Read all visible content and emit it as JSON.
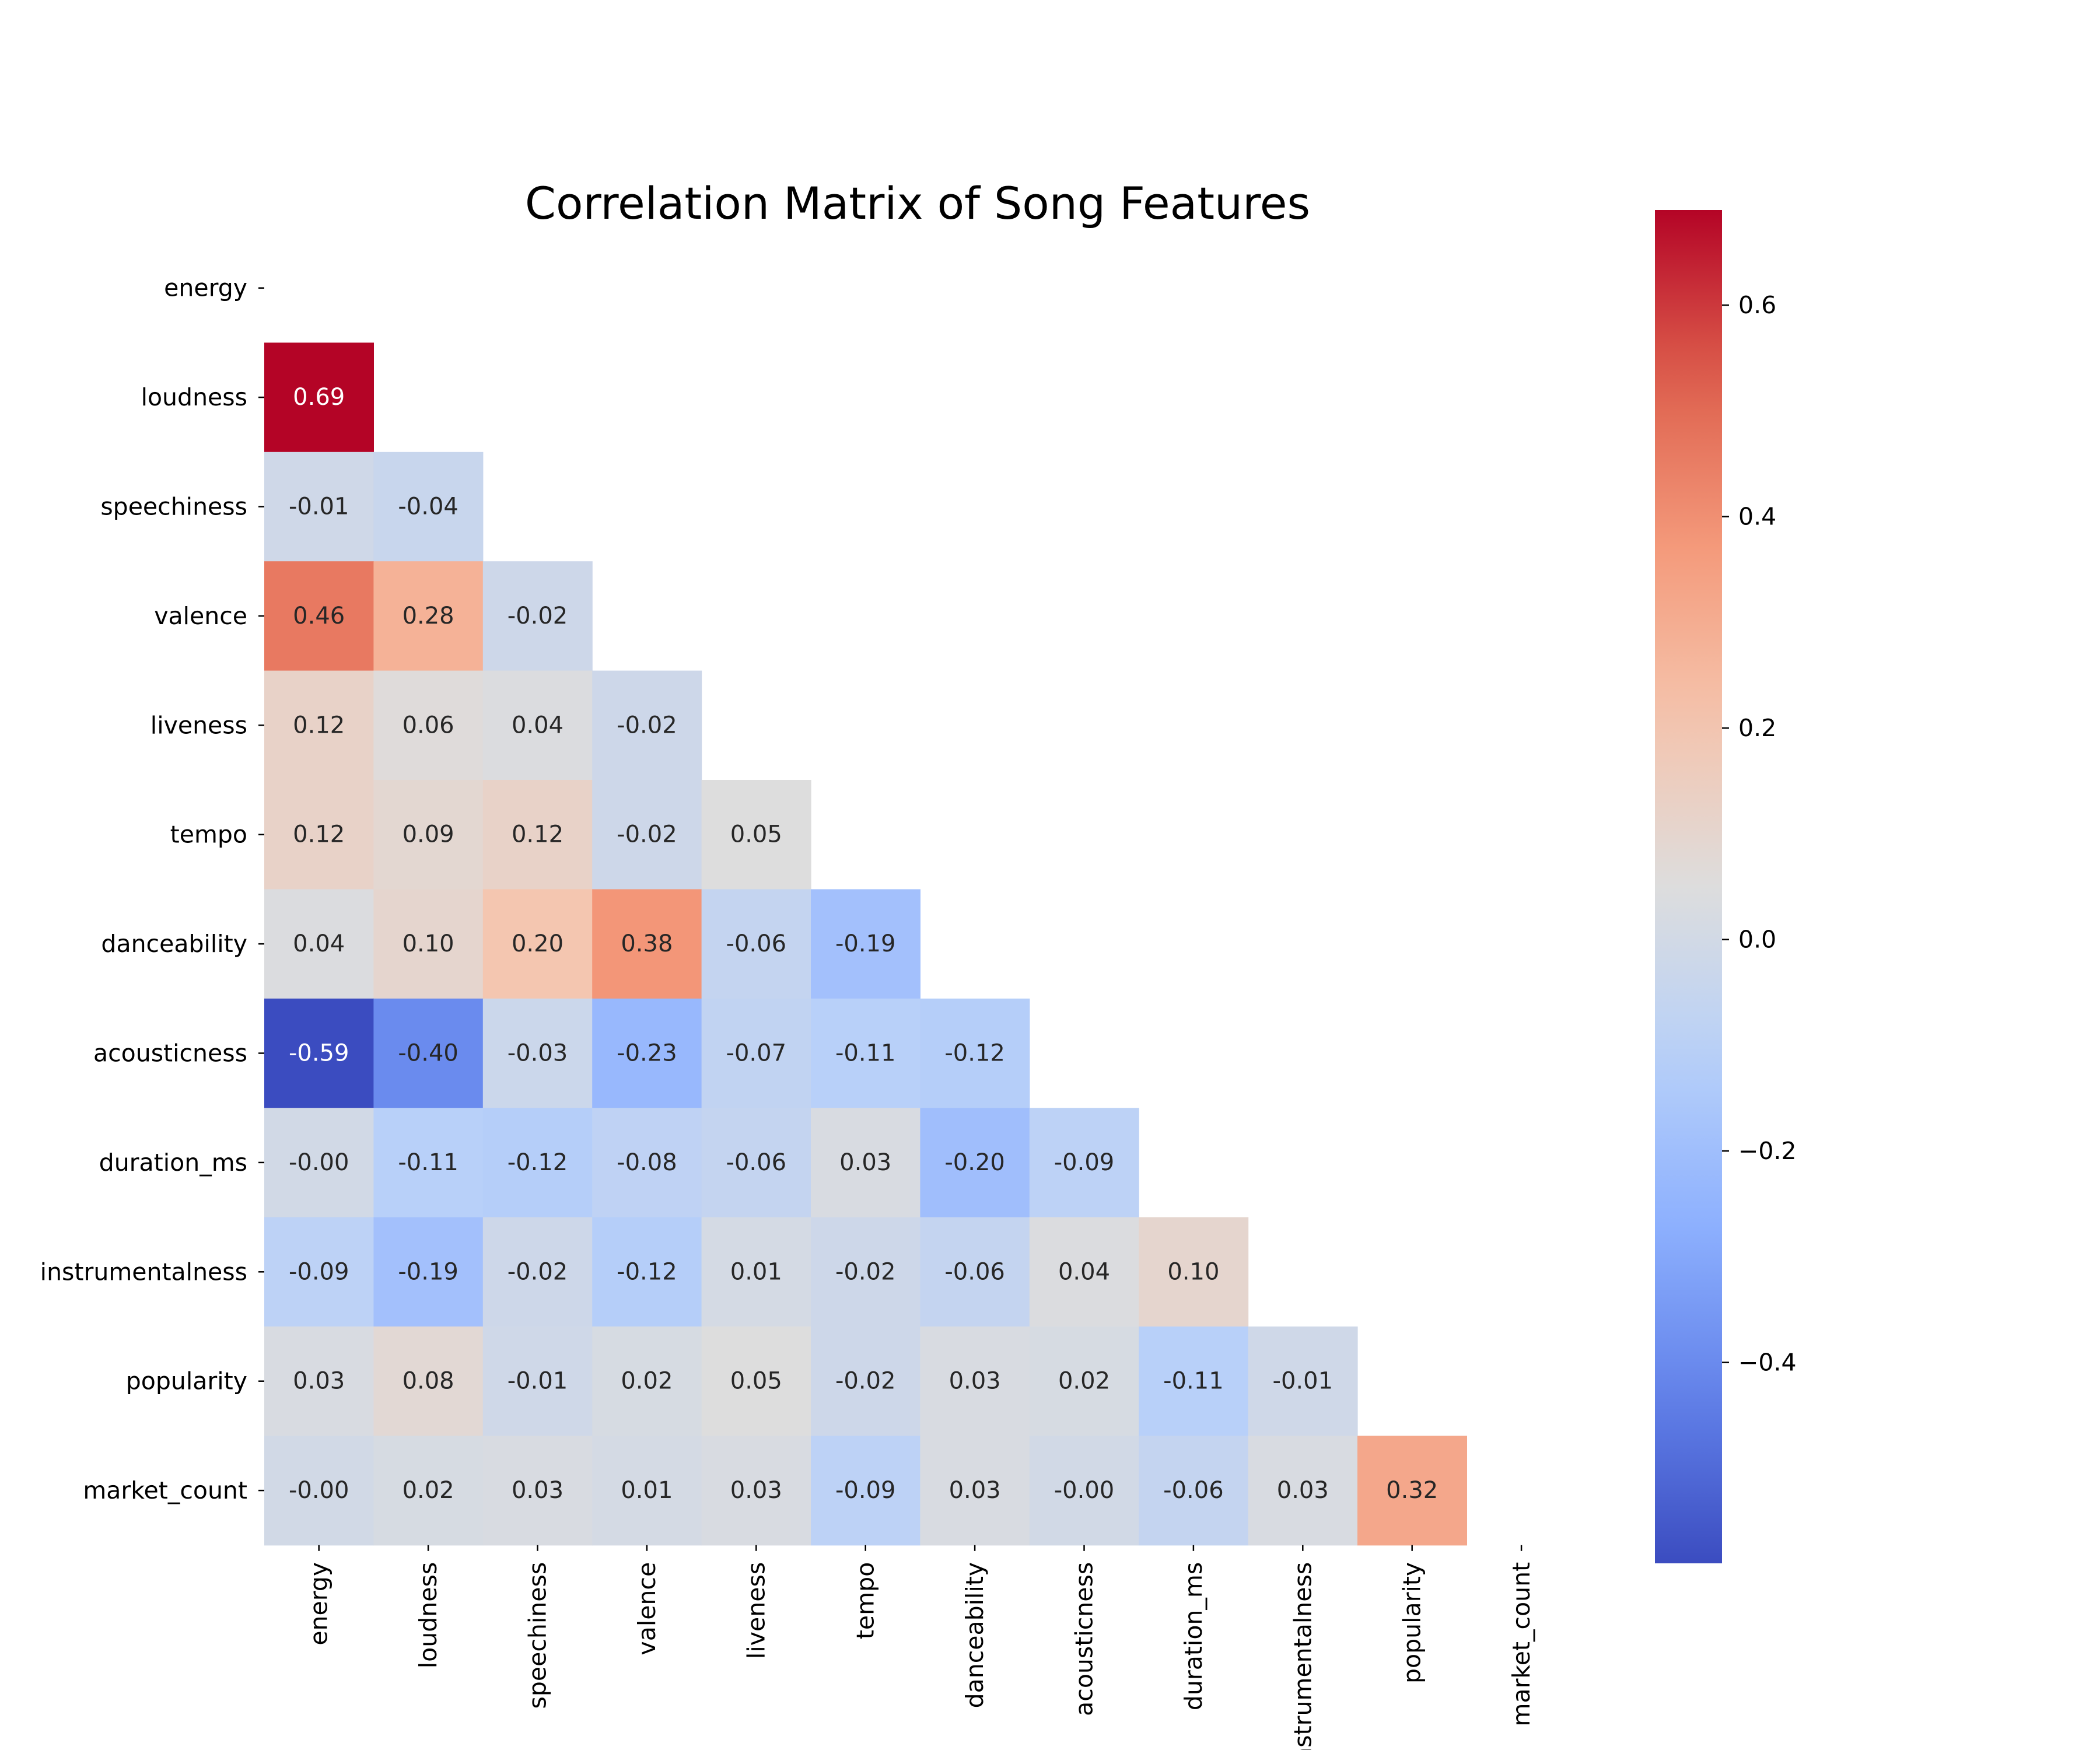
{
  "chart_data": {
    "type": "heatmap",
    "title": "Correlation Matrix of Song Features",
    "rows": [
      "energy",
      "loudness",
      "speechiness",
      "valence",
      "liveness",
      "tempo",
      "danceability",
      "acousticness",
      "duration_ms",
      "instrumentalness",
      "popularity",
      "market_count"
    ],
    "columns": [
      "energy",
      "loudness",
      "speechiness",
      "valence",
      "liveness",
      "tempo",
      "danceability",
      "acousticness",
      "duration_ms",
      "instrumentalness",
      "popularity",
      "market_count"
    ],
    "mask": "upper triangle including diagonal",
    "cells": [
      {
        "row": "loudness",
        "col": "energy",
        "label": "0.69",
        "value": 0.69
      },
      {
        "row": "speechiness",
        "col": "energy",
        "label": "-0.01",
        "value": -0.01
      },
      {
        "row": "speechiness",
        "col": "loudness",
        "label": "-0.04",
        "value": -0.04
      },
      {
        "row": "valence",
        "col": "energy",
        "label": "0.46",
        "value": 0.46
      },
      {
        "row": "valence",
        "col": "loudness",
        "label": "0.28",
        "value": 0.28
      },
      {
        "row": "valence",
        "col": "speechiness",
        "label": "-0.02",
        "value": -0.02
      },
      {
        "row": "liveness",
        "col": "energy",
        "label": "0.12",
        "value": 0.12
      },
      {
        "row": "liveness",
        "col": "loudness",
        "label": "0.06",
        "value": 0.06
      },
      {
        "row": "liveness",
        "col": "speechiness",
        "label": "0.04",
        "value": 0.04
      },
      {
        "row": "liveness",
        "col": "valence",
        "label": "-0.02",
        "value": -0.02
      },
      {
        "row": "tempo",
        "col": "energy",
        "label": "0.12",
        "value": 0.12
      },
      {
        "row": "tempo",
        "col": "loudness",
        "label": "0.09",
        "value": 0.09
      },
      {
        "row": "tempo",
        "col": "speechiness",
        "label": "0.12",
        "value": 0.12
      },
      {
        "row": "tempo",
        "col": "valence",
        "label": "-0.02",
        "value": -0.02
      },
      {
        "row": "tempo",
        "col": "liveness",
        "label": "0.05",
        "value": 0.05
      },
      {
        "row": "danceability",
        "col": "energy",
        "label": "0.04",
        "value": 0.04
      },
      {
        "row": "danceability",
        "col": "loudness",
        "label": "0.10",
        "value": 0.1
      },
      {
        "row": "danceability",
        "col": "speechiness",
        "label": "0.20",
        "value": 0.2
      },
      {
        "row": "danceability",
        "col": "valence",
        "label": "0.38",
        "value": 0.38
      },
      {
        "row": "danceability",
        "col": "liveness",
        "label": "-0.06",
        "value": -0.06
      },
      {
        "row": "danceability",
        "col": "tempo",
        "label": "-0.19",
        "value": -0.19
      },
      {
        "row": "acousticness",
        "col": "energy",
        "label": "-0.59",
        "value": -0.59
      },
      {
        "row": "acousticness",
        "col": "loudness",
        "label": "-0.40",
        "value": -0.4
      },
      {
        "row": "acousticness",
        "col": "speechiness",
        "label": "-0.03",
        "value": -0.03
      },
      {
        "row": "acousticness",
        "col": "valence",
        "label": "-0.23",
        "value": -0.23
      },
      {
        "row": "acousticness",
        "col": "liveness",
        "label": "-0.07",
        "value": -0.07
      },
      {
        "row": "acousticness",
        "col": "tempo",
        "label": "-0.11",
        "value": -0.11
      },
      {
        "row": "acousticness",
        "col": "danceability",
        "label": "-0.12",
        "value": -0.12
      },
      {
        "row": "duration_ms",
        "col": "energy",
        "label": "-0.00",
        "value": -0.0
      },
      {
        "row": "duration_ms",
        "col": "loudness",
        "label": "-0.11",
        "value": -0.11
      },
      {
        "row": "duration_ms",
        "col": "speechiness",
        "label": "-0.12",
        "value": -0.12
      },
      {
        "row": "duration_ms",
        "col": "valence",
        "label": "-0.08",
        "value": -0.08
      },
      {
        "row": "duration_ms",
        "col": "liveness",
        "label": "-0.06",
        "value": -0.06
      },
      {
        "row": "duration_ms",
        "col": "tempo",
        "label": "0.03",
        "value": 0.03
      },
      {
        "row": "duration_ms",
        "col": "danceability",
        "label": "-0.20",
        "value": -0.2
      },
      {
        "row": "duration_ms",
        "col": "acousticness",
        "label": "-0.09",
        "value": -0.09
      },
      {
        "row": "instrumentalness",
        "col": "energy",
        "label": "-0.09",
        "value": -0.09
      },
      {
        "row": "instrumentalness",
        "col": "loudness",
        "label": "-0.19",
        "value": -0.19
      },
      {
        "row": "instrumentalness",
        "col": "speechiness",
        "label": "-0.02",
        "value": -0.02
      },
      {
        "row": "instrumentalness",
        "col": "valence",
        "label": "-0.12",
        "value": -0.12
      },
      {
        "row": "instrumentalness",
        "col": "liveness",
        "label": "0.01",
        "value": 0.01
      },
      {
        "row": "instrumentalness",
        "col": "tempo",
        "label": "-0.02",
        "value": -0.02
      },
      {
        "row": "instrumentalness",
        "col": "danceability",
        "label": "-0.06",
        "value": -0.06
      },
      {
        "row": "instrumentalness",
        "col": "acousticness",
        "label": "0.04",
        "value": 0.04
      },
      {
        "row": "instrumentalness",
        "col": "duration_ms",
        "label": "0.10",
        "value": 0.1
      },
      {
        "row": "popularity",
        "col": "energy",
        "label": "0.03",
        "value": 0.03
      },
      {
        "row": "popularity",
        "col": "loudness",
        "label": "0.08",
        "value": 0.08
      },
      {
        "row": "popularity",
        "col": "speechiness",
        "label": "-0.01",
        "value": -0.01
      },
      {
        "row": "popularity",
        "col": "valence",
        "label": "0.02",
        "value": 0.02
      },
      {
        "row": "popularity",
        "col": "liveness",
        "label": "0.05",
        "value": 0.05
      },
      {
        "row": "popularity",
        "col": "tempo",
        "label": "-0.02",
        "value": -0.02
      },
      {
        "row": "popularity",
        "col": "danceability",
        "label": "0.03",
        "value": 0.03
      },
      {
        "row": "popularity",
        "col": "acousticness",
        "label": "0.02",
        "value": 0.02
      },
      {
        "row": "popularity",
        "col": "duration_ms",
        "label": "-0.11",
        "value": -0.11
      },
      {
        "row": "popularity",
        "col": "instrumentalness",
        "label": "-0.01",
        "value": -0.01
      },
      {
        "row": "market_count",
        "col": "energy",
        "label": "-0.00",
        "value": -0.0
      },
      {
        "row": "market_count",
        "col": "loudness",
        "label": "0.02",
        "value": 0.02
      },
      {
        "row": "market_count",
        "col": "speechiness",
        "label": "0.03",
        "value": 0.03
      },
      {
        "row": "market_count",
        "col": "valence",
        "label": "0.01",
        "value": 0.01
      },
      {
        "row": "market_count",
        "col": "liveness",
        "label": "0.03",
        "value": 0.03
      },
      {
        "row": "market_count",
        "col": "tempo",
        "label": "-0.09",
        "value": -0.09
      },
      {
        "row": "market_count",
        "col": "danceability",
        "label": "0.03",
        "value": 0.03
      },
      {
        "row": "market_count",
        "col": "acousticness",
        "label": "-0.00",
        "value": -0.0
      },
      {
        "row": "market_count",
        "col": "duration_ms",
        "label": "-0.06",
        "value": -0.06
      },
      {
        "row": "market_count",
        "col": "instrumentalness",
        "label": "0.03",
        "value": 0.03
      },
      {
        "row": "market_count",
        "col": "popularity",
        "label": "0.32",
        "value": 0.32
      }
    ],
    "colorbar": {
      "colormap": "coolwarm",
      "range": [
        -0.59,
        0.69
      ],
      "ticks": [
        {
          "value": 0.6,
          "label": "0.6"
        },
        {
          "value": 0.4,
          "label": "0.4"
        },
        {
          "value": 0.2,
          "label": "0.2"
        },
        {
          "value": 0.0,
          "label": "0.0"
        },
        {
          "value": -0.2,
          "label": "−0.2"
        },
        {
          "value": -0.4,
          "label": "−0.4"
        }
      ]
    },
    "colors": {
      "min": "#3b4cc0",
      "mid": "#dddddd",
      "max": "#b40426",
      "light_text": "#ffffff",
      "dark_text": "#262626"
    },
    "grid": false
  }
}
